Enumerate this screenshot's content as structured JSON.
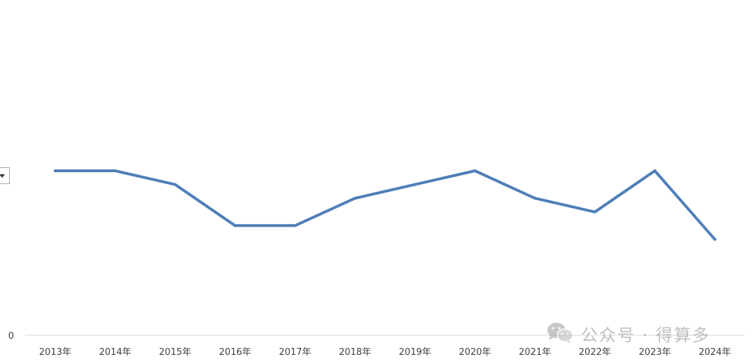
{
  "chart_data": {
    "type": "line",
    "title": "",
    "xlabel": "",
    "ylabel": "",
    "categories": [
      "2013年",
      "2014年",
      "2015年",
      "2016年",
      "2017年",
      "2018年",
      "2019年",
      "2020年",
      "2021年",
      "2022年",
      "2023年",
      "2024年"
    ],
    "series": [
      {
        "color": "#4f7fb9",
        "values": [
          12,
          12,
          11,
          8,
          8,
          10,
          11,
          12,
          10,
          9,
          12,
          7
        ]
      }
    ],
    "ylim": [
      0,
      24
    ],
    "y_tick_labels": [
      "0"
    ],
    "grid": false,
    "legend": "none"
  },
  "watermark": {
    "icon": "wechat-icon",
    "text": "公众号 · 得算多"
  },
  "controls": {
    "dropdown_icon": "chevron-down-icon"
  }
}
